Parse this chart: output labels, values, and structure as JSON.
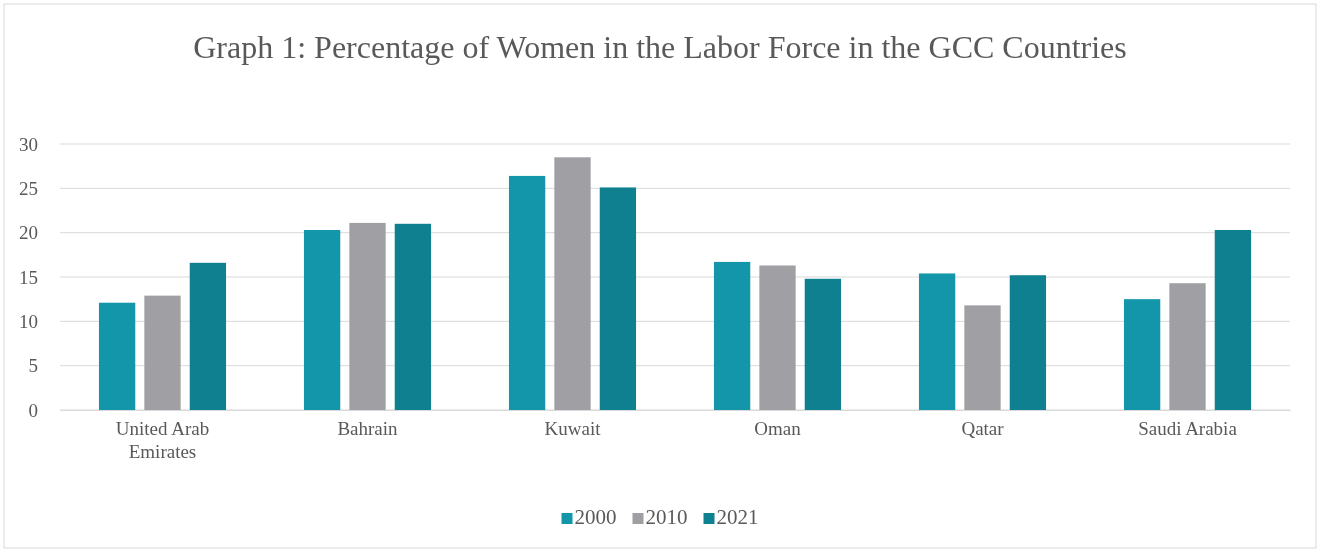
{
  "chart_data": {
    "type": "bar",
    "title": "Graph 1: Percentage of Women in the Labor Force in the GCC Countries",
    "categories": [
      "United Arab Emirates",
      "Bahrain",
      "Kuwait",
      "Oman",
      "Qatar",
      "Saudi Arabia"
    ],
    "series": [
      {
        "name": "2000",
        "color": "#1496aa",
        "values": [
          12.1,
          20.3,
          26.4,
          16.7,
          15.4,
          12.5
        ]
      },
      {
        "name": "2010",
        "color": "#a0a0a4",
        "values": [
          12.9,
          21.1,
          28.5,
          16.3,
          11.8,
          14.3
        ]
      },
      {
        "name": "2021",
        "color": "#0e8090",
        "values": [
          16.6,
          21.0,
          25.1,
          14.8,
          15.2,
          20.3
        ]
      }
    ],
    "ylim": [
      0,
      30
    ],
    "yticks": [
      0,
      5,
      10,
      15,
      20,
      25,
      30
    ],
    "grid": "y",
    "legend": "bottom"
  }
}
